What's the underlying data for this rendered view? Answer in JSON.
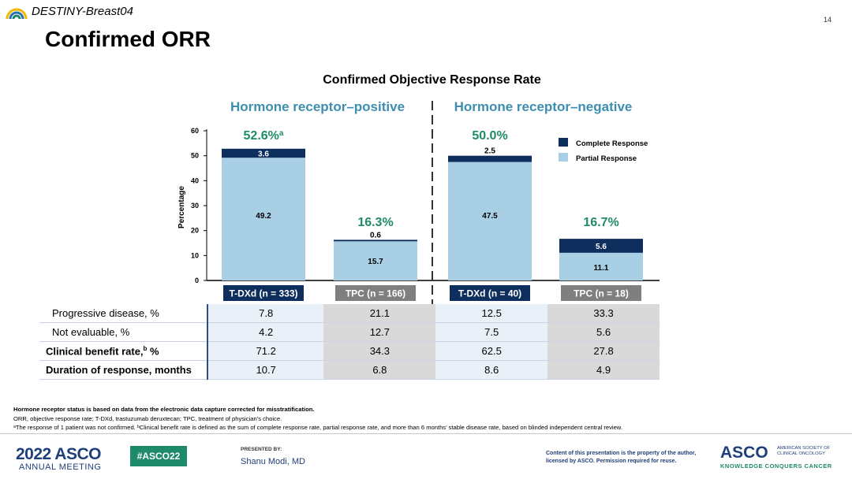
{
  "header": {
    "trial_name": "DESTINY-Breast04",
    "page_number": "14"
  },
  "slide_title": "Confirmed ORR",
  "chart_data": {
    "type": "bar",
    "title": "Confirmed Objective Response Rate",
    "ylabel": "Percentage",
    "ylim": [
      0,
      60
    ],
    "yticks": [
      "0",
      "10",
      "20",
      "30",
      "40",
      "50",
      "60"
    ],
    "grid": false,
    "legend_position": "top-right",
    "groups": [
      "Hormone receptor–positive",
      "Hormone receptor–negative"
    ],
    "categories": [
      "T-DXd (n = 333)",
      "TPC (n = 166)",
      "T-DXd (n = 40)",
      "TPC (n = 18)"
    ],
    "series": [
      {
        "name": "Partial Response",
        "values": [
          49.2,
          15.7,
          47.5,
          11.1
        ],
        "color": "#a8cfe3"
      },
      {
        "name": "Complete Response",
        "values": [
          3.6,
          0.6,
          2.5,
          5.6
        ],
        "color": "#0e2f5e"
      }
    ],
    "totals": [
      "52.6%",
      "16.3%",
      "50.0%",
      "16.7%"
    ],
    "total_superscripts": [
      "a",
      "",
      "",
      ""
    ],
    "category_colors": [
      "#0e2f5e",
      "#7f7f7f",
      "#0e2f5e",
      "#7f7f7f"
    ]
  },
  "table": {
    "rows": [
      {
        "label": "Progressive disease, %",
        "sup": "",
        "suffix": "",
        "bold": false,
        "values": [
          "7.8",
          "21.1",
          "12.5",
          "33.3"
        ]
      },
      {
        "label": "Not evaluable, %",
        "sup": "",
        "suffix": "",
        "bold": false,
        "values": [
          "4.2",
          "12.7",
          "7.5",
          "5.6"
        ]
      },
      {
        "label": "Clinical benefit rate,",
        "sup": "b",
        "suffix": " %",
        "bold": true,
        "values": [
          "71.2",
          "34.3",
          "62.5",
          "27.8"
        ]
      },
      {
        "label": "Duration of response, months",
        "sup": "",
        "suffix": "",
        "bold": true,
        "values": [
          "10.7",
          "6.8",
          "8.6",
          "4.9"
        ]
      }
    ]
  },
  "footnotes": {
    "bold_line": "Hormone receptor status is based on data from the electronic data capture corrected for misstratification.",
    "line2": "ORR, objective response rate; T-DXd, trastuzumab deruxtecan; TPC, treatment of physician’s choice.",
    "line3": "ᵃThe response of 1 patient was not confirmed. ᵇClinical benefit rate is defined as the sum of complete response rate, partial response rate, and more than 6 months’ stable disease rate, based on blinded independent central review."
  },
  "footer": {
    "asco_year": "2022 ASCO",
    "annual_meeting": "ANNUAL MEETING",
    "hashtag": "#ASCO22",
    "presented_by": "PRESENTED BY:",
    "presenter": "Shanu Modi, MD",
    "copyright": "Content of this presentation is the property of the author, licensed by ASCO. Permission required for reuse.",
    "asco_logo": "ASCO",
    "asco_society": "AMERICAN SOCIETY OF CLINICAL ONCOLOGY",
    "tagline": "KNOWLEDGE CONQUERS CANCER"
  }
}
